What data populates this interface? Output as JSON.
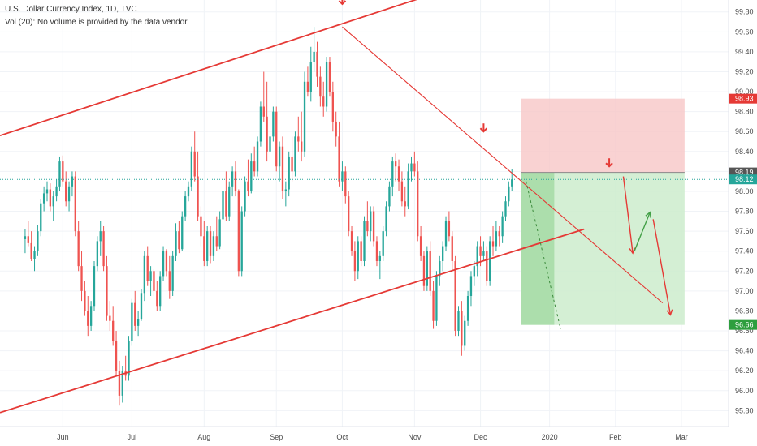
{
  "header": {
    "title": "U.S. Dollar Currency Index, 1D, TVC",
    "volume_note": "Vol (20): No volume is provided by the data vendor."
  },
  "colors": {
    "up": "#26a69a",
    "down": "#ef5350",
    "trend_line": "#e53935",
    "arrow_red": "#e53935",
    "arrow_green": "#43a047",
    "stop_zone": "#f8c7c7",
    "target_zone": "#cdeccd",
    "target_zone_dark": "#9bd79b",
    "current_price_line": "#26a69a",
    "grid": "#f0f3f7"
  },
  "chart_data": {
    "type": "candlestick",
    "y_axis": {
      "ticks": [
        "95.80",
        "96.00",
        "96.20",
        "96.40",
        "96.60",
        "96.80",
        "97.00",
        "97.20",
        "97.40",
        "97.60",
        "97.80",
        "98.00",
        "98.20",
        "98.40",
        "98.60",
        "98.80",
        "99.00",
        "99.20",
        "99.40",
        "99.60",
        "99.80"
      ],
      "min": 95.64,
      "max": 99.92
    },
    "x_axis": {
      "ticks": [
        "Jun",
        "Jul",
        "Aug",
        "Sep",
        "Oct",
        "Nov",
        "Dec",
        "2020",
        "Feb",
        "Mar"
      ]
    },
    "price_badges": [
      {
        "label": "98.93",
        "value": 98.93,
        "color": "#e53935"
      },
      {
        "label": "98.19",
        "value": 98.19,
        "color": "#555555"
      },
      {
        "label": "98.12",
        "value": 98.12,
        "color": "#26a69a"
      },
      {
        "label": "96.66",
        "value": 96.66,
        "color": "#2e9e3e"
      }
    ],
    "position": {
      "stop": 98.93,
      "entry": 98.19,
      "target": 96.66,
      "start": "late Nov 2019",
      "end": "Feb 2020"
    },
    "candles": [
      [
        97.52,
        97.62,
        97.38,
        97.55
      ],
      [
        97.55,
        97.7,
        97.45,
        97.48
      ],
      [
        97.48,
        97.6,
        97.3,
        97.32
      ],
      [
        97.32,
        97.45,
        97.2,
        97.4
      ],
      [
        97.4,
        97.66,
        97.35,
        97.6
      ],
      [
        97.6,
        97.92,
        97.55,
        97.88
      ],
      [
        97.88,
        98.05,
        97.8,
        97.98
      ],
      [
        97.98,
        98.1,
        97.9,
        98.02
      ],
      [
        98.02,
        98.08,
        97.8,
        97.85
      ],
      [
        97.85,
        98.0,
        97.7,
        97.95
      ],
      [
        97.95,
        98.12,
        97.9,
        98.05
      ],
      [
        98.05,
        98.35,
        98.0,
        98.3
      ],
      [
        98.3,
        98.36,
        98.05,
        98.1
      ],
      [
        98.1,
        98.2,
        97.85,
        97.9
      ],
      [
        97.9,
        98.1,
        97.8,
        98.05
      ],
      [
        98.05,
        98.2,
        97.95,
        98.15
      ],
      [
        98.15,
        98.2,
        97.55,
        97.6
      ],
      [
        97.6,
        97.7,
        97.2,
        97.25
      ],
      [
        97.25,
        97.4,
        96.9,
        97.0
      ],
      [
        97.0,
        97.1,
        96.75,
        96.8
      ],
      [
        96.8,
        96.95,
        96.55,
        96.65
      ],
      [
        96.65,
        96.9,
        96.6,
        96.85
      ],
      [
        96.85,
        97.3,
        96.8,
        97.25
      ],
      [
        97.25,
        97.55,
        97.2,
        97.5
      ],
      [
        97.5,
        97.7,
        97.35,
        97.6
      ],
      [
        97.6,
        97.65,
        97.2,
        97.25
      ],
      [
        97.25,
        97.35,
        96.7,
        96.75
      ],
      [
        96.75,
        96.9,
        96.6,
        96.7
      ],
      [
        96.7,
        96.85,
        96.45,
        96.5
      ],
      [
        96.5,
        96.6,
        96.15,
        96.2
      ],
      [
        96.2,
        96.3,
        95.85,
        95.95
      ],
      [
        95.95,
        96.25,
        95.88,
        96.2
      ],
      [
        96.2,
        96.35,
        96.1,
        96.15
      ],
      [
        96.15,
        96.55,
        96.1,
        96.5
      ],
      [
        96.5,
        96.92,
        96.45,
        96.88
      ],
      [
        96.88,
        97.0,
        96.6,
        96.65
      ],
      [
        96.65,
        96.8,
        96.55,
        96.72
      ],
      [
        96.72,
        97.02,
        96.7,
        96.98
      ],
      [
        96.98,
        97.4,
        96.9,
        97.35
      ],
      [
        97.35,
        97.45,
        97.05,
        97.1
      ],
      [
        97.1,
        97.25,
        96.95,
        97.2
      ],
      [
        97.2,
        97.22,
        96.95,
        97.0
      ],
      [
        97.0,
        97.1,
        96.8,
        96.85
      ],
      [
        96.85,
        97.2,
        96.8,
        97.15
      ],
      [
        97.15,
        97.45,
        97.1,
        97.4
      ],
      [
        97.4,
        97.42,
        97.15,
        97.2
      ],
      [
        97.2,
        97.35,
        96.92,
        97.0
      ],
      [
        97.0,
        97.4,
        96.95,
        97.35
      ],
      [
        97.35,
        97.68,
        97.3,
        97.6
      ],
      [
        97.6,
        97.7,
        97.38,
        97.42
      ],
      [
        97.42,
        97.8,
        97.4,
        97.75
      ],
      [
        97.75,
        98.0,
        97.7,
        97.95
      ],
      [
        97.95,
        98.1,
        97.9,
        98.05
      ],
      [
        98.05,
        98.45,
        98.0,
        98.4
      ],
      [
        98.4,
        98.6,
        98.1,
        98.15
      ],
      [
        98.15,
        98.4,
        97.7,
        97.75
      ],
      [
        97.75,
        97.85,
        97.45,
        97.55
      ],
      [
        97.55,
        97.7,
        97.25,
        97.3
      ],
      [
        97.3,
        97.65,
        97.25,
        97.6
      ],
      [
        97.6,
        97.65,
        97.28,
        97.35
      ],
      [
        97.35,
        97.6,
        97.3,
        97.55
      ],
      [
        97.55,
        97.75,
        97.4,
        97.45
      ],
      [
        97.45,
        97.8,
        97.42,
        97.72
      ],
      [
        97.72,
        98.05,
        97.68,
        98.0
      ],
      [
        98.0,
        98.2,
        97.7,
        97.75
      ],
      [
        97.75,
        98.1,
        97.7,
        98.05
      ],
      [
        98.05,
        98.25,
        97.95,
        98.2
      ],
      [
        98.2,
        98.3,
        97.95,
        98.0
      ],
      [
        98.0,
        98.02,
        97.15,
        97.2
      ],
      [
        97.2,
        97.85,
        97.15,
        97.8
      ],
      [
        97.8,
        98.15,
        97.75,
        98.1
      ],
      [
        98.1,
        98.32,
        97.95,
        98.0
      ],
      [
        98.0,
        98.38,
        97.98,
        98.3
      ],
      [
        98.3,
        98.45,
        98.15,
        98.2
      ],
      [
        98.2,
        98.55,
        98.15,
        98.5
      ],
      [
        98.5,
        98.9,
        98.45,
        98.85
      ],
      [
        98.85,
        99.2,
        98.7,
        98.75
      ],
      [
        98.75,
        99.1,
        98.3,
        98.4
      ],
      [
        98.4,
        98.6,
        98.2,
        98.55
      ],
      [
        98.55,
        98.85,
        98.5,
        98.8
      ],
      [
        98.8,
        98.85,
        98.2,
        98.25
      ],
      [
        98.25,
        98.5,
        98.1,
        98.45
      ],
      [
        98.45,
        98.55,
        97.92,
        98.0
      ],
      [
        98.0,
        98.1,
        97.85,
        98.02
      ],
      [
        98.02,
        98.4,
        97.95,
        98.35
      ],
      [
        98.35,
        98.55,
        98.1,
        98.2
      ],
      [
        98.2,
        98.6,
        98.15,
        98.55
      ],
      [
        98.55,
        98.75,
        98.4,
        98.5
      ],
      [
        98.5,
        98.8,
        98.3,
        98.4
      ],
      [
        98.4,
        99.2,
        98.35,
        99.1
      ],
      [
        99.1,
        99.25,
        98.95,
        99.0
      ],
      [
        99.0,
        99.45,
        98.9,
        99.3
      ],
      [
        99.3,
        99.65,
        99.2,
        99.4
      ],
      [
        99.4,
        99.5,
        99.05,
        99.15
      ],
      [
        99.15,
        99.25,
        98.85,
        98.95
      ],
      [
        98.95,
        99.1,
        98.75,
        98.85
      ],
      [
        98.85,
        99.35,
        98.8,
        99.3
      ],
      [
        99.3,
        99.35,
        98.95,
        99.0
      ],
      [
        99.0,
        99.1,
        98.6,
        98.7
      ],
      [
        98.7,
        98.8,
        98.45,
        98.55
      ],
      [
        98.55,
        98.7,
        98.05,
        98.1
      ],
      [
        98.1,
        98.3,
        98.0,
        98.2
      ],
      [
        98.2,
        98.25,
        97.88,
        97.95
      ],
      [
        97.95,
        98.0,
        97.55,
        97.6
      ],
      [
        97.6,
        97.65,
        97.35,
        97.4
      ],
      [
        97.4,
        97.5,
        97.1,
        97.2
      ],
      [
        97.2,
        97.55,
        97.12,
        97.5
      ],
      [
        97.5,
        97.55,
        97.25,
        97.3
      ],
      [
        97.3,
        97.75,
        97.25,
        97.7
      ],
      [
        97.7,
        97.9,
        97.55,
        97.6
      ],
      [
        97.6,
        97.85,
        97.5,
        97.8
      ],
      [
        97.8,
        97.85,
        97.45,
        97.5
      ],
      [
        97.5,
        97.55,
        97.25,
        97.3
      ],
      [
        97.3,
        97.4,
        97.12,
        97.35
      ],
      [
        97.35,
        97.65,
        97.3,
        97.6
      ],
      [
        97.6,
        97.9,
        97.55,
        97.85
      ],
      [
        97.85,
        98.1,
        97.8,
        98.05
      ],
      [
        98.05,
        98.35,
        97.95,
        98.3
      ],
      [
        98.3,
        98.38,
        98.1,
        98.25
      ],
      [
        98.25,
        98.32,
        98.0,
        98.1
      ],
      [
        98.1,
        98.2,
        97.85,
        97.9
      ],
      [
        97.9,
        98.05,
        97.75,
        97.85
      ],
      [
        97.85,
        98.28,
        97.82,
        98.2
      ],
      [
        98.2,
        98.35,
        98.1,
        98.28
      ],
      [
        98.28,
        98.4,
        98.15,
        98.2
      ],
      [
        98.2,
        98.3,
        97.5,
        97.55
      ],
      [
        97.55,
        97.65,
        97.3,
        97.35
      ],
      [
        97.35,
        97.4,
        97.0,
        97.05
      ],
      [
        97.05,
        97.45,
        97.0,
        97.4
      ],
      [
        97.4,
        97.5,
        96.95,
        97.0
      ],
      [
        97.0,
        97.1,
        96.62,
        96.7
      ],
      [
        96.7,
        97.2,
        96.65,
        97.15
      ],
      [
        97.15,
        97.35,
        97.05,
        97.3
      ],
      [
        97.3,
        97.5,
        97.2,
        97.45
      ],
      [
        97.45,
        97.75,
        97.4,
        97.7
      ],
      [
        97.7,
        97.8,
        97.5,
        97.55
      ],
      [
        97.55,
        97.6,
        97.2,
        97.3
      ],
      [
        97.3,
        97.35,
        96.55,
        96.6
      ],
      [
        96.6,
        96.85,
        96.55,
        96.8
      ],
      [
        96.8,
        96.9,
        96.35,
        96.45
      ],
      [
        96.45,
        96.75,
        96.4,
        96.7
      ],
      [
        96.7,
        97.0,
        96.65,
        96.95
      ],
      [
        96.95,
        97.2,
        96.85,
        97.15
      ],
      [
        97.15,
        97.3,
        97.05,
        97.25
      ],
      [
        97.25,
        97.5,
        97.15,
        97.45
      ],
      [
        97.45,
        97.55,
        97.25,
        97.35
      ],
      [
        97.35,
        97.5,
        97.3,
        97.4
      ],
      [
        97.4,
        97.45,
        97.05,
        97.1
      ],
      [
        97.1,
        97.55,
        97.05,
        97.5
      ],
      [
        97.5,
        97.65,
        97.35,
        97.45
      ],
      [
        97.45,
        97.7,
        97.4,
        97.6
      ],
      [
        97.6,
        97.65,
        97.45,
        97.55
      ],
      [
        97.55,
        97.8,
        97.48,
        97.75
      ],
      [
        97.75,
        97.95,
        97.7,
        97.9
      ],
      [
        97.9,
        98.1,
        97.85,
        98.05
      ],
      [
        98.05,
        98.22,
        98.0,
        98.12
      ]
    ],
    "x_range": {
      "min": -8,
      "max": 224
    },
    "month_ticks": [
      {
        "label": "Jun",
        "x": 12
      },
      {
        "label": "Jul",
        "x": 34
      },
      {
        "label": "Aug",
        "x": 57
      },
      {
        "label": "Sep",
        "x": 80
      },
      {
        "label": "Oct",
        "x": 101
      },
      {
        "label": "Nov",
        "x": 124
      },
      {
        "label": "Dec",
        "x": 145
      },
      {
        "label": "2020",
        "x": 167
      },
      {
        "label": "Feb",
        "x": 188
      },
      {
        "label": "Mar",
        "x": 209
      }
    ]
  }
}
